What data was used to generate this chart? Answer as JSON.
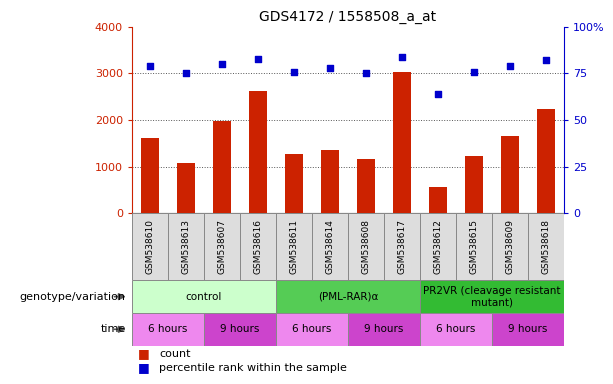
{
  "title": "GDS4172 / 1558508_a_at",
  "samples": [
    "GSM538610",
    "GSM538613",
    "GSM538607",
    "GSM538616",
    "GSM538611",
    "GSM538614",
    "GSM538608",
    "GSM538617",
    "GSM538612",
    "GSM538615",
    "GSM538609",
    "GSM538618"
  ],
  "counts": [
    1620,
    1080,
    1970,
    2620,
    1280,
    1360,
    1160,
    3040,
    560,
    1220,
    1650,
    2230
  ],
  "percentile_ranks": [
    79,
    75,
    80,
    83,
    76,
    78,
    75,
    84,
    64,
    76,
    79,
    82
  ],
  "bar_color": "#cc2200",
  "dot_color": "#0000cc",
  "ylim_left": [
    0,
    4000
  ],
  "ylim_right": [
    0,
    100
  ],
  "yticks_left": [
    0,
    1000,
    2000,
    3000,
    4000
  ],
  "yticks_right": [
    0,
    25,
    50,
    75,
    100
  ],
  "ytick_labels_right": [
    "0",
    "25",
    "50",
    "75",
    "100%"
  ],
  "grid_values": [
    1000,
    2000,
    3000
  ],
  "groups": [
    {
      "label": "control",
      "start": 0,
      "end": 4,
      "color": "#ccffcc"
    },
    {
      "label": "(PML-RAR)α",
      "start": 4,
      "end": 8,
      "color": "#55cc55"
    },
    {
      "label": "PR2VR (cleavage resistant\nmutant)",
      "start": 8,
      "end": 12,
      "color": "#33bb33"
    }
  ],
  "time_groups": [
    {
      "label": "6 hours",
      "start": 0,
      "end": 2,
      "color": "#ee88ee"
    },
    {
      "label": "9 hours",
      "start": 2,
      "end": 4,
      "color": "#cc44cc"
    },
    {
      "label": "6 hours",
      "start": 4,
      "end": 6,
      "color": "#ee88ee"
    },
    {
      "label": "9 hours",
      "start": 6,
      "end": 8,
      "color": "#cc44cc"
    },
    {
      "label": "6 hours",
      "start": 8,
      "end": 10,
      "color": "#ee88ee"
    },
    {
      "label": "9 hours",
      "start": 10,
      "end": 12,
      "color": "#cc44cc"
    }
  ],
  "row_labels": [
    "genotype/variation",
    "time"
  ],
  "legend_items": [
    {
      "label": "count",
      "color": "#cc2200"
    },
    {
      "label": "percentile rank within the sample",
      "color": "#0000cc"
    }
  ],
  "bg_color": "#ffffff",
  "plot_bg_color": "#ffffff",
  "tick_color_left": "#cc2200",
  "tick_color_right": "#0000cc",
  "bar_width": 0.5,
  "sample_box_color": "#dddddd",
  "sample_box_edge": "#888888"
}
